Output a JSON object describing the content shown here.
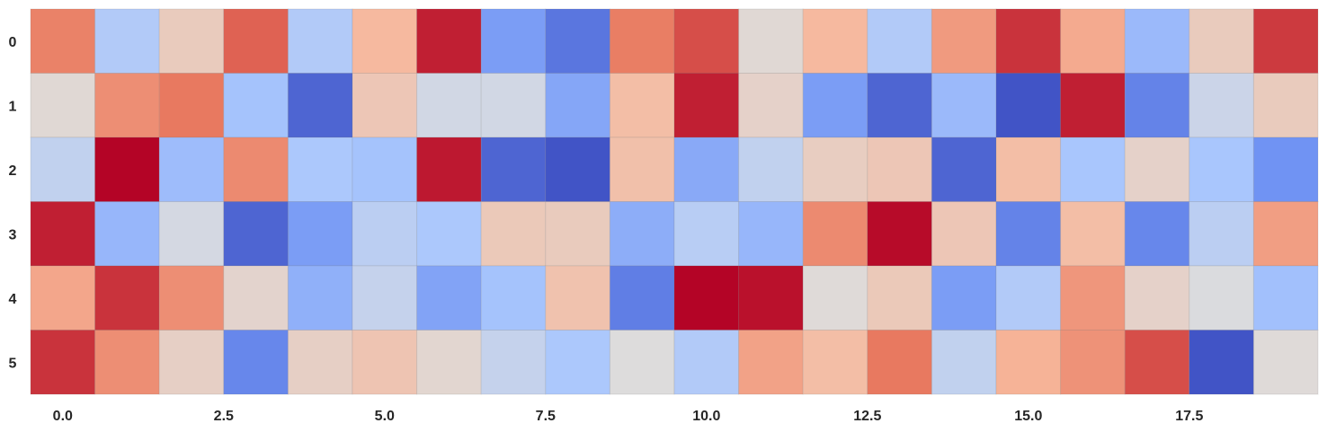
{
  "chart_data": {
    "type": "heatmap",
    "title": "",
    "xlabel": "",
    "ylabel": "",
    "colormap": "coolwarm",
    "colormap_stops": [
      "#3b4cc0",
      "#6f92f3",
      "#aac7fd",
      "#dddcdc",
      "#f7b89c",
      "#e7745b",
      "#b40426"
    ],
    "value_range": [
      0,
      1
    ],
    "xlim": [
      -0.5,
      19.5
    ],
    "ylim": [
      -0.5,
      5.5
    ],
    "x_ticks": [
      0.0,
      2.5,
      5.0,
      7.5,
      10.0,
      12.5,
      15.0,
      17.5
    ],
    "x_tick_labels": [
      "0.0",
      "2.5",
      "5.0",
      "7.5",
      "10.0",
      "12.5",
      "15.0",
      "17.5"
    ],
    "y_ticks": [
      0,
      1,
      2,
      3,
      4,
      5
    ],
    "y_tick_labels": [
      "0",
      "1",
      "2",
      "3",
      "4",
      "5"
    ],
    "grid": false,
    "colorbar": false,
    "rows": 6,
    "cols": 20,
    "values": [
      [
        0.8,
        0.36,
        0.58,
        0.86,
        0.36,
        0.66,
        0.96,
        0.2,
        0.1,
        0.81,
        0.89,
        0.52,
        0.66,
        0.36,
        0.74,
        0.93,
        0.7,
        0.29,
        0.58,
        0.92
      ],
      [
        0.52,
        0.77,
        0.82,
        0.32,
        0.06,
        0.6,
        0.46,
        0.46,
        0.23,
        0.64,
        0.96,
        0.55,
        0.2,
        0.06,
        0.29,
        0.02,
        0.96,
        0.13,
        0.44,
        0.58
      ],
      [
        0.41,
        1.0,
        0.3,
        0.78,
        0.34,
        0.32,
        0.97,
        0.06,
        0.02,
        0.63,
        0.24,
        0.41,
        0.57,
        0.6,
        0.06,
        0.64,
        0.33,
        0.55,
        0.33,
        0.17
      ],
      [
        0.96,
        0.28,
        0.47,
        0.06,
        0.2,
        0.39,
        0.34,
        0.59,
        0.58,
        0.25,
        0.38,
        0.28,
        0.78,
        0.99,
        0.6,
        0.13,
        0.64,
        0.14,
        0.39,
        0.73
      ],
      [
        0.71,
        0.93,
        0.77,
        0.54,
        0.26,
        0.42,
        0.22,
        0.32,
        0.62,
        0.12,
        1.0,
        0.98,
        0.51,
        0.59,
        0.2,
        0.36,
        0.75,
        0.55,
        0.49,
        0.31
      ],
      [
        0.93,
        0.77,
        0.56,
        0.14,
        0.56,
        0.61,
        0.53,
        0.42,
        0.34,
        0.5,
        0.36,
        0.72,
        0.64,
        0.82,
        0.41,
        0.68,
        0.76,
        0.89,
        0.02,
        0.51
      ]
    ]
  }
}
